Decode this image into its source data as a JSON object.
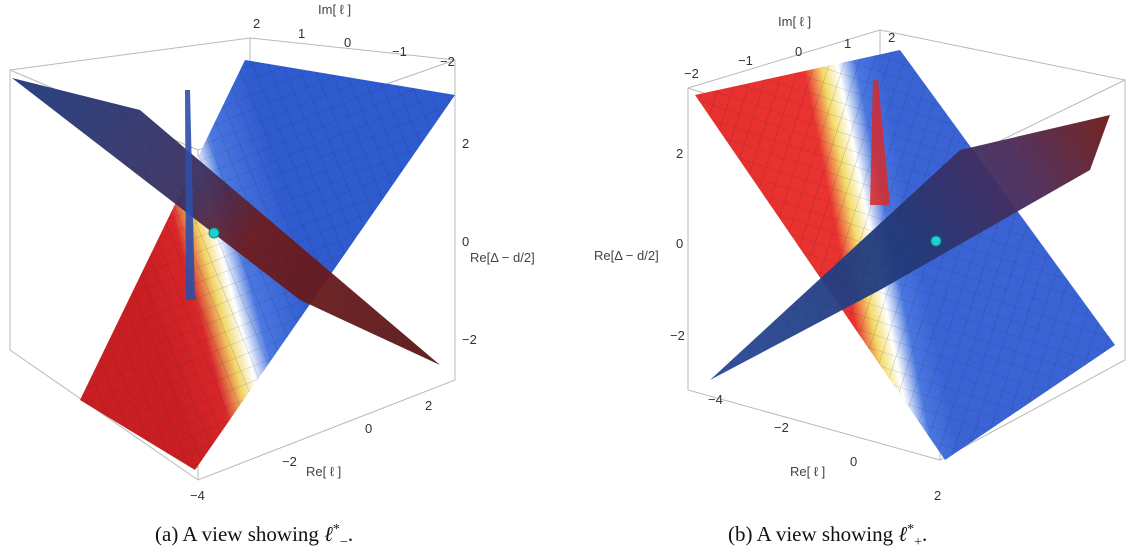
{
  "figure": {
    "panel_a": {
      "caption": "(a) A view showing",
      "caption_symbol": "ℓ",
      "caption_sup": "*",
      "caption_sub": "−",
      "caption_end": ".",
      "axis_im": "Im[ ℓ ]",
      "axis_re": "Re[ ℓ ]",
      "axis_z": "Re[Δ − d/2]",
      "im_ticks": [
        "2",
        "1",
        "0",
        "−1",
        "−2"
      ],
      "re_ticks": [
        "2",
        "0",
        "−2",
        "−4"
      ],
      "z_ticks": [
        "2",
        "0",
        "−2"
      ]
    },
    "panel_b": {
      "caption": "(b) A view showing",
      "caption_symbol": "ℓ",
      "caption_sup": "*",
      "caption_sub": "+",
      "caption_end": ".",
      "axis_im": "Im[ ℓ ]",
      "axis_re": "Re[ ℓ ]",
      "axis_z": "Re[Δ − d/2]",
      "im_ticks": [
        "−2",
        "−1",
        "0",
        "1",
        "2"
      ],
      "re_ticks": [
        "−4",
        "−2",
        "0",
        "2"
      ],
      "z_ticks": [
        "2",
        "0",
        "−2"
      ]
    },
    "colors": {
      "red": "#e8302f",
      "blue": "#3a64d6",
      "dark_blue": "#1f3a7a",
      "dark_red": "#6e1a1a",
      "yellow": "#f2e27a",
      "marker": "#22d0d0"
    }
  }
}
